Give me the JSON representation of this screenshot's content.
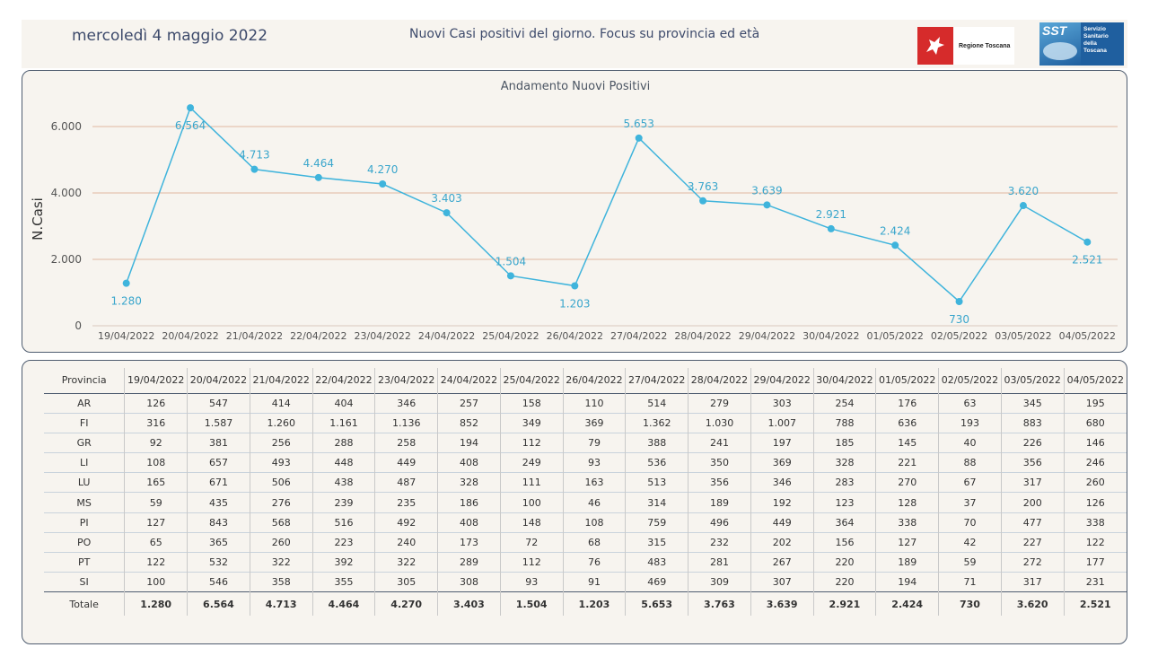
{
  "header": {
    "date": "mercoledì 4 maggio 2022",
    "title": "Nuovi Casi positivi del giorno. Focus su provincia ed età",
    "logo_rt_text": "Regione Toscana",
    "logo_sst_abbr": "SST",
    "logo_sst_lines": [
      "Servizio",
      "Sanitario",
      "della",
      "Toscana"
    ]
  },
  "chart_data": {
    "type": "line",
    "title": "Andamento Nuovi Positivi",
    "ylabel": "N.Casi",
    "xlabel": "",
    "ylim": [
      0,
      6600
    ],
    "yticks": [
      0,
      2000,
      4000,
      6000
    ],
    "ytick_labels": [
      "0",
      "2.000",
      "4.000",
      "6.000"
    ],
    "categories": [
      "19/04/2022",
      "20/04/2022",
      "21/04/2022",
      "22/04/2022",
      "23/04/2022",
      "24/04/2022",
      "25/04/2022",
      "26/04/2022",
      "27/04/2022",
      "28/04/2022",
      "29/04/2022",
      "30/04/2022",
      "01/05/2022",
      "02/05/2022",
      "03/05/2022",
      "04/05/2022"
    ],
    "values": [
      1280,
      6564,
      4713,
      4464,
      4270,
      3403,
      1504,
      1203,
      5653,
      3763,
      3639,
      2921,
      2424,
      730,
      3620,
      2521
    ],
    "value_labels": [
      "1.280",
      "6.564",
      "4.713",
      "4.464",
      "4.270",
      "3.403",
      "1.504",
      "1.203",
      "5.653",
      "3.763",
      "3.639",
      "2.921",
      "2.424",
      "730",
      "3.620",
      "2.521"
    ],
    "label_pos": [
      "below",
      "below",
      "above",
      "above",
      "above",
      "above",
      "above",
      "below",
      "above",
      "above",
      "above",
      "above",
      "above",
      "below",
      "above",
      "below"
    ],
    "line_color": "#3fb4dc",
    "grid_color": "#e2b7a0",
    "grid": true
  },
  "table": {
    "header_label": "Provincia",
    "columns": [
      "19/04/2022",
      "20/04/2022",
      "21/04/2022",
      "22/04/2022",
      "23/04/2022",
      "24/04/2022",
      "25/04/2022",
      "26/04/2022",
      "27/04/2022",
      "28/04/2022",
      "29/04/2022",
      "30/04/2022",
      "01/05/2022",
      "02/05/2022",
      "03/05/2022",
      "04/05/2022"
    ],
    "rows": [
      {
        "name": "AR",
        "values": [
          "126",
          "547",
          "414",
          "404",
          "346",
          "257",
          "158",
          "110",
          "514",
          "279",
          "303",
          "254",
          "176",
          "63",
          "345",
          "195"
        ]
      },
      {
        "name": "FI",
        "values": [
          "316",
          "1.587",
          "1.260",
          "1.161",
          "1.136",
          "852",
          "349",
          "369",
          "1.362",
          "1.030",
          "1.007",
          "788",
          "636",
          "193",
          "883",
          "680"
        ]
      },
      {
        "name": "GR",
        "values": [
          "92",
          "381",
          "256",
          "288",
          "258",
          "194",
          "112",
          "79",
          "388",
          "241",
          "197",
          "185",
          "145",
          "40",
          "226",
          "146"
        ]
      },
      {
        "name": "LI",
        "values": [
          "108",
          "657",
          "493",
          "448",
          "449",
          "408",
          "249",
          "93",
          "536",
          "350",
          "369",
          "328",
          "221",
          "88",
          "356",
          "246"
        ]
      },
      {
        "name": "LU",
        "values": [
          "165",
          "671",
          "506",
          "438",
          "487",
          "328",
          "111",
          "163",
          "513",
          "356",
          "346",
          "283",
          "270",
          "67",
          "317",
          "260"
        ]
      },
      {
        "name": "MS",
        "values": [
          "59",
          "435",
          "276",
          "239",
          "235",
          "186",
          "100",
          "46",
          "314",
          "189",
          "192",
          "123",
          "128",
          "37",
          "200",
          "126"
        ]
      },
      {
        "name": "PI",
        "values": [
          "127",
          "843",
          "568",
          "516",
          "492",
          "408",
          "148",
          "108",
          "759",
          "496",
          "449",
          "364",
          "338",
          "70",
          "477",
          "338"
        ]
      },
      {
        "name": "PO",
        "values": [
          "65",
          "365",
          "260",
          "223",
          "240",
          "173",
          "72",
          "68",
          "315",
          "232",
          "202",
          "156",
          "127",
          "42",
          "227",
          "122"
        ]
      },
      {
        "name": "PT",
        "values": [
          "122",
          "532",
          "322",
          "392",
          "322",
          "289",
          "112",
          "76",
          "483",
          "281",
          "267",
          "220",
          "189",
          "59",
          "272",
          "177"
        ]
      },
      {
        "name": "SI",
        "values": [
          "100",
          "546",
          "358",
          "355",
          "305",
          "308",
          "93",
          "91",
          "469",
          "309",
          "307",
          "220",
          "194",
          "71",
          "317",
          "231"
        ]
      }
    ],
    "total_label": "Totale",
    "totals": [
      "1.280",
      "6.564",
      "4.713",
      "4.464",
      "4.270",
      "3.403",
      "1.504",
      "1.203",
      "5.653",
      "3.763",
      "3.639",
      "2.921",
      "2.424",
      "730",
      "3.620",
      "2.521"
    ]
  }
}
